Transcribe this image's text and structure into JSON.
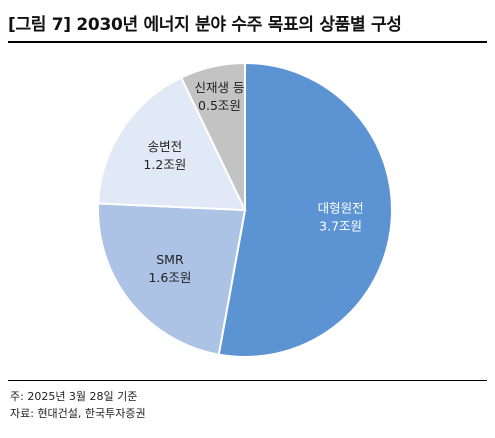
{
  "title": "[그림 7] 2030년 에너지 분야 수주 목표의 상품별 구성",
  "notes": {
    "basis": "주: 2025년 3월 28일 기준",
    "source": "자료: 현대건설, 한국투자증권"
  },
  "chart_data": {
    "type": "pie",
    "unit": "조원",
    "slices": [
      {
        "name": "대형원전",
        "value": 3.7,
        "label": "3.7조원",
        "color": "#5b93d3"
      },
      {
        "name": "SMR",
        "value": 1.6,
        "label": "1.6조원",
        "color": "#adc3e6"
      },
      {
        "name": "송변전",
        "value": 1.2,
        "label": "1.2조원",
        "color": "#e1e8f6"
      },
      {
        "name": "신재생 등",
        "value": 0.5,
        "label": "0.5조원",
        "color": "#c3c3c3"
      }
    ],
    "label_color": {
      "on_dark": "#ffffff",
      "on_light": "#222222"
    }
  }
}
